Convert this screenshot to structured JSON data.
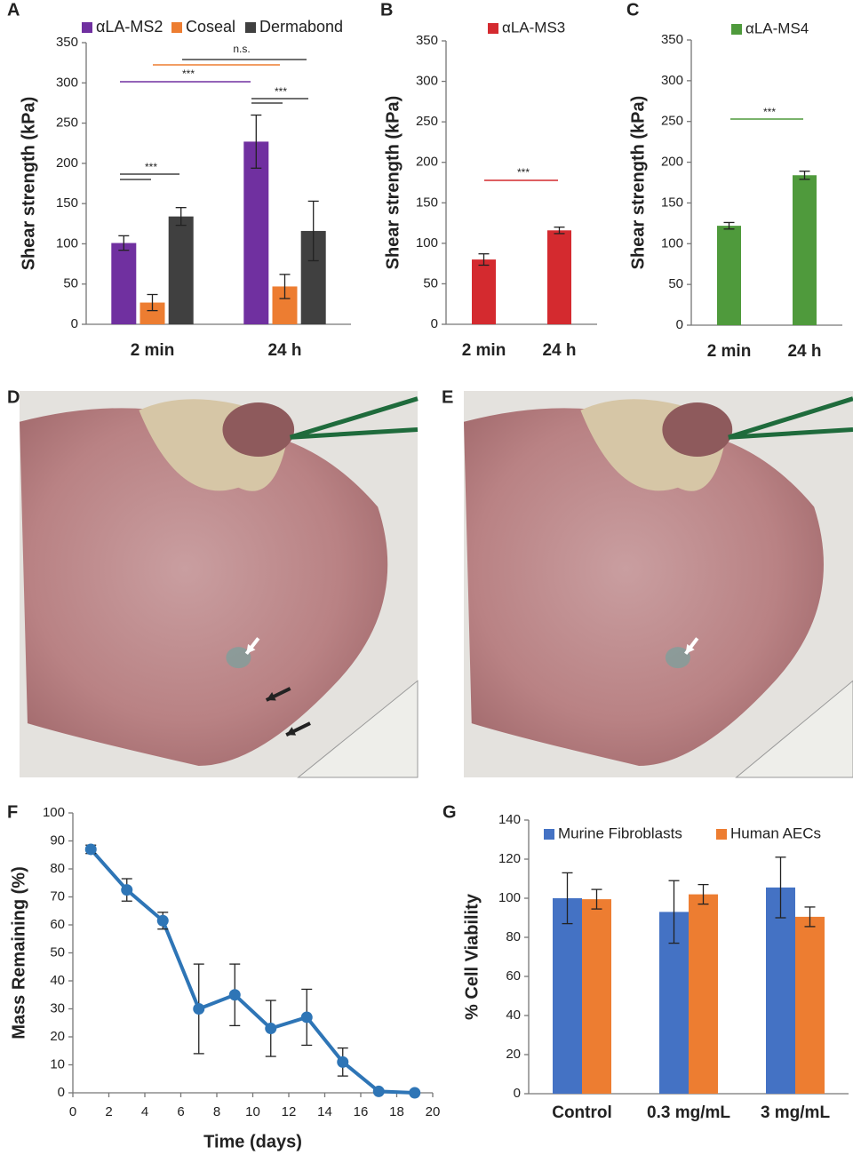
{
  "chart_data": [
    {
      "type": "bar",
      "label": "A",
      "y_label": "Shear strength (kPa)",
      "categories": [
        "2 min",
        "24 h"
      ],
      "series": [
        {
          "name": "αLA-MS2",
          "color": "#7030a0",
          "values": [
            101,
            227
          ],
          "errors": [
            9,
            33
          ]
        },
        {
          "name": "Coseal",
          "color": "#ed7d31",
          "values": [
            27,
            47
          ],
          "errors": [
            10,
            15
          ]
        },
        {
          "name": "Dermabond",
          "color": "#404040",
          "values": [
            134,
            116
          ],
          "errors": [
            11,
            37
          ]
        }
      ],
      "ylim": [
        0,
        350
      ],
      "yticks": [
        0,
        50,
        100,
        150,
        200,
        250,
        300,
        350
      ],
      "annotations": [
        "n.s.",
        "***",
        "***",
        "***"
      ]
    },
    {
      "type": "bar",
      "label": "B",
      "y_label": "Shear strength (kPa)",
      "categories": [
        "2 min",
        "24 h"
      ],
      "series": [
        {
          "name": "αLA-MS3",
          "color": "#d42a2f",
          "values": [
            80,
            116
          ],
          "errors": [
            7,
            4
          ]
        }
      ],
      "ylim": [
        0,
        350
      ],
      "yticks": [
        0,
        50,
        100,
        150,
        200,
        250,
        300,
        350
      ],
      "annotations": [
        "***"
      ]
    },
    {
      "type": "bar",
      "label": "C",
      "y_label": "Shear strength (kPa)",
      "categories": [
        "2 min",
        "24 h"
      ],
      "series": [
        {
          "name": "αLA-MS4",
          "color": "#4f9a3c",
          "values": [
            122,
            184
          ],
          "errors": [
            4,
            5
          ]
        }
      ],
      "ylim": [
        0,
        350
      ],
      "yticks": [
        0,
        50,
        100,
        150,
        200,
        250,
        300,
        350
      ],
      "annotations": [
        "***"
      ]
    },
    {
      "type": "image",
      "label": "D"
    },
    {
      "type": "image",
      "label": "E"
    },
    {
      "type": "line",
      "label": "F",
      "x_label": "Time (days)",
      "y_label": "Mass Remaining (%)",
      "color": "#2e75b6",
      "x": [
        1,
        3,
        5,
        7,
        9,
        11,
        13,
        15,
        17,
        19
      ],
      "values": [
        87,
        72.5,
        61.5,
        30,
        35,
        23,
        27,
        11,
        0.5,
        0
      ],
      "errors": [
        1.5,
        4,
        3,
        16,
        11,
        10,
        10,
        5,
        0.5,
        0
      ],
      "xlim": [
        0,
        20
      ],
      "xticks": [
        0,
        2,
        4,
        6,
        8,
        10,
        12,
        14,
        16,
        18,
        20
      ],
      "ylim": [
        0,
        100
      ],
      "yticks": [
        0,
        10,
        20,
        30,
        40,
        50,
        60,
        70,
        80,
        90,
        100
      ]
    },
    {
      "type": "bar",
      "label": "G",
      "y_label": "% Cell Viability",
      "categories": [
        "Control",
        "0.3 mg/mL",
        "3 mg/mL"
      ],
      "series": [
        {
          "name": "Murine Fibroblasts",
          "color": "#4472c4",
          "values": [
            100,
            93,
            105.5
          ],
          "errors": [
            13,
            16,
            15.5
          ]
        },
        {
          "name": "Human AECs",
          "color": "#ed7d31",
          "values": [
            99.5,
            102,
            90.5
          ],
          "errors": [
            5,
            5,
            5
          ]
        }
      ],
      "ylim": [
        0,
        140
      ],
      "yticks": [
        0,
        20,
        40,
        60,
        80,
        100,
        120,
        140
      ]
    }
  ]
}
